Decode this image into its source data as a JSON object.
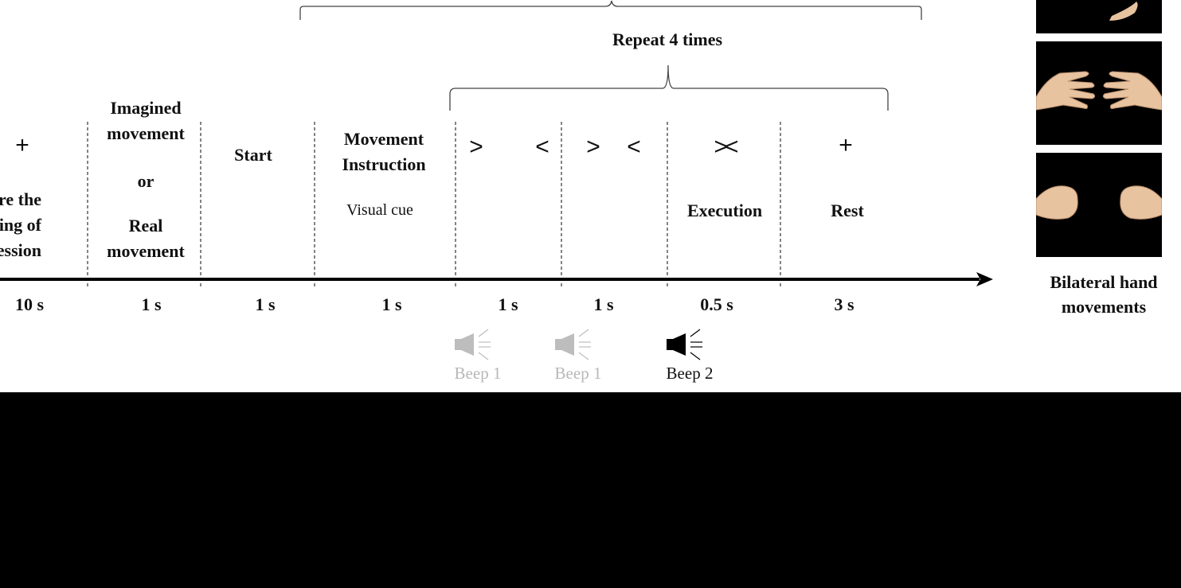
{
  "repeat_label": "Repeat 4 times",
  "phases": [
    {
      "symbol": "+",
      "texts": [
        "fore the",
        "inning of",
        "h session"
      ],
      "duration": "10 s"
    },
    {
      "texts": [
        "Imagined",
        "movement",
        "or",
        "Real",
        "movement"
      ],
      "duration": "1 s"
    },
    {
      "texts": [
        "Start"
      ],
      "duration": "1 s"
    },
    {
      "texts": [
        "Movement",
        "Instruction"
      ],
      "subtext": "Visual cue",
      "duration": "1 s"
    },
    {
      "symbol_left": ">",
      "symbol_right": "<",
      "duration": "1 s"
    },
    {
      "symbol_left": ">",
      "symbol_right": "<",
      "duration": "1 s"
    },
    {
      "symbol": "><",
      "texts": [
        "Execution"
      ],
      "duration": "0.5 s"
    },
    {
      "symbol": "+",
      "texts": [
        "Rest"
      ],
      "duration": "3 s"
    }
  ],
  "beeps": [
    {
      "label": "Beep 1",
      "color": "#b8b8b8"
    },
    {
      "label": "Beep 1",
      "color": "#b8b8b8"
    },
    {
      "label": "Beep 2",
      "color": "#000000"
    }
  ],
  "hand_panel": {
    "images": [
      "hands-touching-image",
      "hands-open-facing-image",
      "fists-facing-image"
    ],
    "caption_line1": "Bilateral hand",
    "caption_line2": "movements"
  },
  "colors": {
    "background": "#ffffff",
    "line": "#000000",
    "beep_inactive": "#b8b8b8",
    "skin": "#e8c3a0"
  }
}
